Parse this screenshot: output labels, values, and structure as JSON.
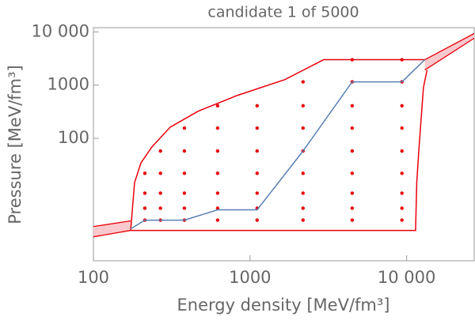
{
  "chart_data": {
    "type": "line",
    "title": "candidate 1 of 5000",
    "x_label": "Energy density [MeV/fm³]",
    "y_label": "Pressure [MeV/fm³]",
    "x_log": true,
    "y_log": true,
    "xlim": [
      100,
      27000
    ],
    "ylim": [
      0.5,
      12000
    ],
    "xticks": [
      100,
      1000,
      {
        "value": 10000,
        "label": "10 000"
      }
    ],
    "yticks": [
      100,
      1000,
      {
        "value": 10000,
        "label": "10 000"
      }
    ],
    "series": [
      {
        "style": "points",
        "color": "#e8000b",
        "x": [
          213,
          213,
          213,
          213,
          268,
          268,
          268,
          268,
          268,
          381,
          381,
          381,
          381,
          381,
          381,
          621,
          621,
          621,
          621,
          621,
          621,
          621,
          1110,
          1110,
          1110,
          1110,
          1110,
          1110,
          1110,
          2180,
          2180,
          2180,
          2180,
          2180,
          2180,
          2180,
          2180,
          4490,
          4490,
          4490,
          4490,
          4490,
          4490,
          4490,
          4490,
          4490,
          9330,
          9330,
          9330,
          9330,
          9330,
          9330,
          9330,
          9330,
          9330
        ],
        "values": [
          22,
          9.33,
          4.86,
          2.9,
          57.7,
          22,
          9.33,
          4.86,
          2.9,
          156,
          57.7,
          22,
          9.33,
          4.86,
          2.9,
          409,
          156,
          57.7,
          22,
          9.33,
          4.86,
          2.9,
          409,
          156,
          57.7,
          22,
          9.33,
          4.86,
          2.9,
          1150,
          409,
          156,
          57.7,
          22,
          9.33,
          4.86,
          2.9,
          3000,
          1150,
          409,
          156,
          57.7,
          22,
          9.33,
          4.86,
          2.9,
          3000,
          1150,
          409,
          156,
          57.7,
          22,
          9.33,
          4.86,
          2.9
        ]
      },
      {
        "style": "line",
        "color": "#e8000b",
        "x": [
          173,
          183,
          201,
          236,
          309,
          464,
          830,
          1670,
          2950,
          13060
        ],
        "values": [
          1.86,
          14.6,
          34.4,
          68.5,
          162,
          321,
          640,
          1270,
          3000,
          3000
        ]
      },
      {
        "style": "line",
        "color": "#e8000b",
        "x": [
          173,
          11400,
          11600,
          12000,
          12800,
          13500
        ],
        "values": [
          1.86,
          1.86,
          14.6,
          68.5,
          902,
          1920
        ]
      },
      {
        "style": "line",
        "color": "#5b7fb5",
        "x": [
          173,
          213,
          381,
          621,
          1110,
          2180,
          4490,
          9330,
          13060
        ],
        "values": [
          1.99,
          2.9,
          2.9,
          4.54,
          4.54,
          57.7,
          1150,
          1150,
          3000
        ]
      }
    ],
    "bands": [
      {
        "color": "#e8000b",
        "fill": "#f9c9cd",
        "x": [
          100,
          173
        ],
        "low": [
          1.41,
          1.86
        ],
        "high": [
          2.2,
          2.81
        ]
      },
      {
        "color": "#e8000b",
        "fill": "#f9c9cd",
        "x": [
          13060,
          27000
        ],
        "low": [
          1920,
          7600
        ],
        "high": [
          3000,
          9330
        ]
      }
    ]
  }
}
